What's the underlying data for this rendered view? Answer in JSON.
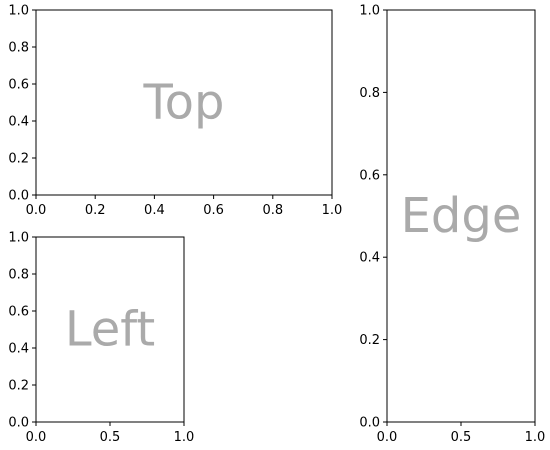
{
  "chart_data": [
    {
      "id": "top",
      "type": "scatter",
      "title": "",
      "xlabel": "",
      "ylabel": "",
      "center_text": "Top",
      "center_text_color": "#aaaaaa",
      "xlim": [
        0,
        1
      ],
      "ylim": [
        0,
        1
      ],
      "grid": false,
      "x_ticks": [
        "0.0",
        "0.2",
        "0.4",
        "0.6",
        "0.8",
        "1.0"
      ],
      "y_ticks": [
        "0.0",
        "0.2",
        "0.4",
        "0.6",
        "0.8",
        "1.0"
      ],
      "series": []
    },
    {
      "id": "left",
      "type": "scatter",
      "title": "",
      "xlabel": "",
      "ylabel": "",
      "center_text": "Left",
      "center_text_color": "#aaaaaa",
      "xlim": [
        0,
        1
      ],
      "ylim": [
        0,
        1
      ],
      "grid": false,
      "x_ticks": [
        "0.0",
        "0.5",
        "1.0"
      ],
      "y_ticks": [
        "0.0",
        "0.2",
        "0.4",
        "0.6",
        "0.8",
        "1.0"
      ],
      "series": []
    },
    {
      "id": "edge",
      "type": "scatter",
      "title": "",
      "xlabel": "",
      "ylabel": "",
      "center_text": "Edge",
      "center_text_color": "#aaaaaa",
      "xlim": [
        0,
        1
      ],
      "ylim": [
        0,
        1
      ],
      "grid": false,
      "x_ticks": [
        "0.0",
        "0.5",
        "1.0"
      ],
      "y_ticks": [
        "0.0",
        "0.2",
        "0.4",
        "0.6",
        "0.8",
        "1.0"
      ],
      "series": []
    }
  ]
}
